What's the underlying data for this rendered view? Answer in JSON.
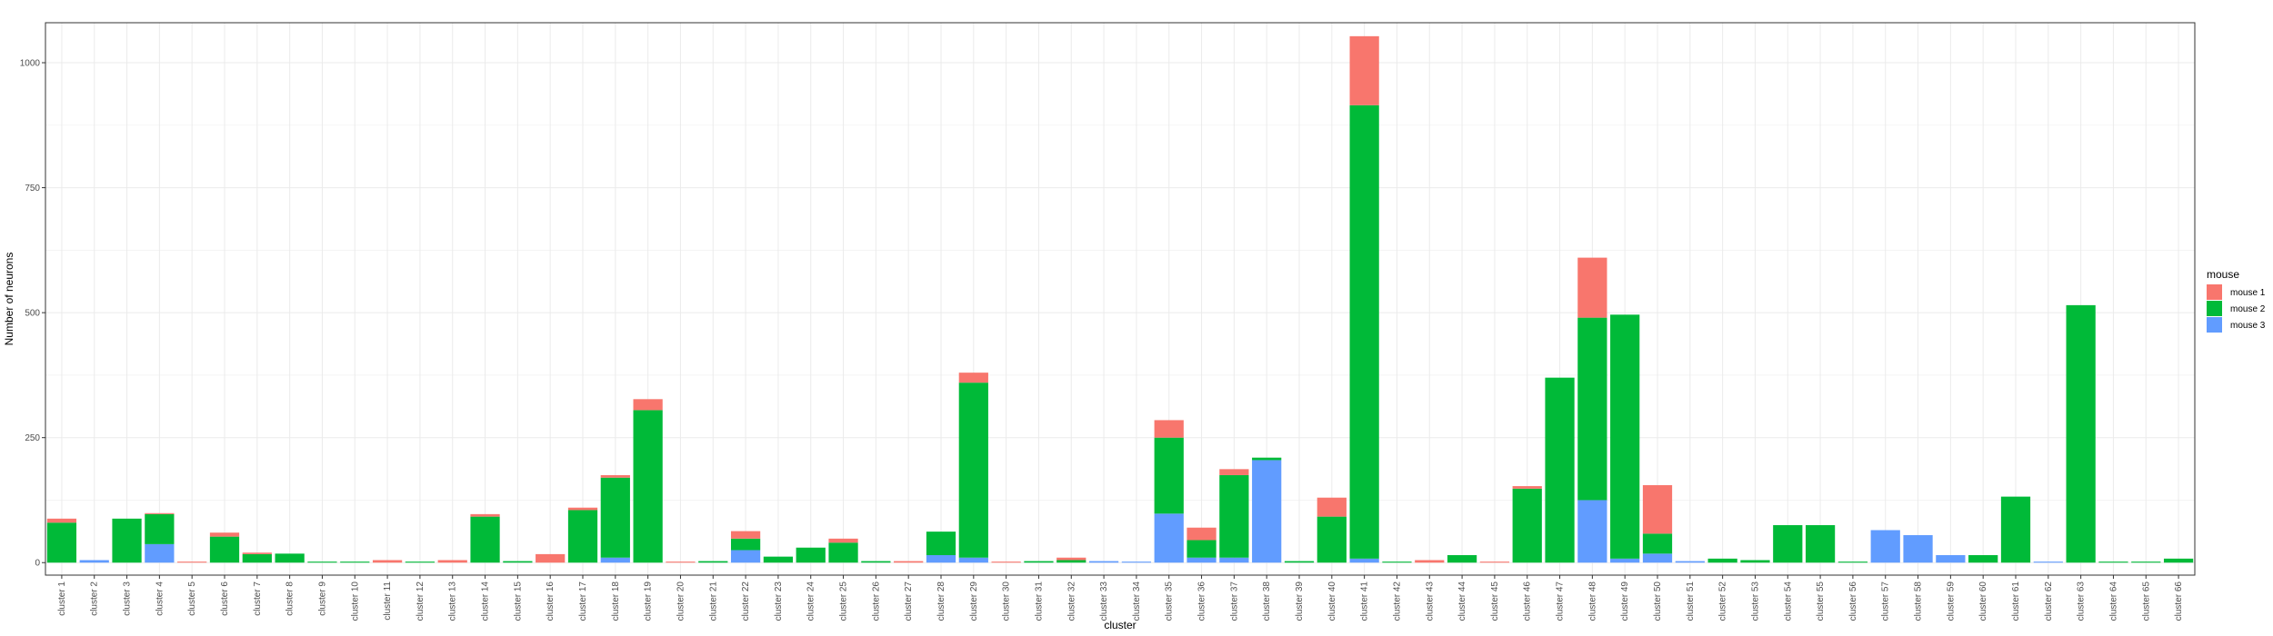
{
  "chart_data": {
    "type": "bar",
    "stacked": true,
    "xlabel": "cluster",
    "ylabel": "Number of neurons",
    "ylim": [
      -25,
      1080
    ],
    "yticks": [
      0,
      250,
      500,
      750,
      1000
    ],
    "grid": true,
    "legend": {
      "title": "mouse",
      "position": "right"
    },
    "categories": [
      "cluster 1",
      "cluster 2",
      "cluster 3",
      "cluster 4",
      "cluster 5",
      "cluster 6",
      "cluster 7",
      "cluster 8",
      "cluster 9",
      "cluster 10",
      "cluster 11",
      "cluster 12",
      "cluster 13",
      "cluster 14",
      "cluster 15",
      "cluster 16",
      "cluster 17",
      "cluster 18",
      "cluster 19",
      "cluster 20",
      "cluster 21",
      "cluster 22",
      "cluster 23",
      "cluster 24",
      "cluster 25",
      "cluster 26",
      "cluster 27",
      "cluster 28",
      "cluster 29",
      "cluster 30",
      "cluster 31",
      "cluster 32",
      "cluster 33",
      "cluster 34",
      "cluster 35",
      "cluster 36",
      "cluster 37",
      "cluster 38",
      "cluster 39",
      "cluster 40",
      "cluster 41",
      "cluster 42",
      "cluster 43",
      "cluster 44",
      "cluster 45",
      "cluster 46",
      "cluster 47",
      "cluster 48",
      "cluster 49",
      "cluster 50",
      "cluster 51",
      "cluster 52",
      "cluster 53",
      "cluster 54",
      "cluster 55",
      "cluster 56",
      "cluster 57",
      "cluster 58",
      "cluster 59",
      "cluster 60",
      "cluster 61",
      "cluster 62",
      "cluster 63",
      "cluster 64",
      "cluster 65",
      "cluster 66"
    ],
    "series": [
      {
        "name": "mouse 3",
        "color": "#619CFF",
        "values": [
          0,
          5,
          0,
          37,
          0,
          0,
          0,
          0,
          0,
          0,
          0,
          0,
          0,
          0,
          0,
          0,
          0,
          10,
          0,
          0,
          0,
          25,
          0,
          0,
          0,
          0,
          0,
          15,
          10,
          0,
          0,
          0,
          3,
          2,
          98,
          10,
          10,
          205,
          0,
          0,
          8,
          0,
          0,
          0,
          0,
          0,
          0,
          125,
          8,
          18,
          3,
          0,
          0,
          0,
          0,
          0,
          65,
          55,
          15,
          0,
          0,
          2,
          0,
          0,
          0,
          0
        ]
      },
      {
        "name": "mouse 2",
        "color": "#00BA38",
        "values": [
          80,
          0,
          88,
          60,
          0,
          52,
          17,
          18,
          2,
          2,
          0,
          2,
          0,
          92,
          3,
          0,
          105,
          160,
          305,
          0,
          3,
          23,
          12,
          30,
          40,
          3,
          0,
          47,
          350,
          0,
          3,
          5,
          0,
          0,
          152,
          35,
          165,
          5,
          3,
          92,
          907,
          2,
          0,
          15,
          0,
          148,
          370,
          365,
          488,
          40,
          0,
          8,
          5,
          75,
          75,
          2,
          0,
          0,
          0,
          15,
          132,
          0,
          515,
          2,
          2,
          8
        ]
      },
      {
        "name": "mouse 1",
        "color": "#F8766D",
        "values": [
          8,
          0,
          0,
          2,
          2,
          8,
          3,
          0,
          0,
          0,
          5,
          0,
          5,
          5,
          0,
          17,
          5,
          5,
          22,
          2,
          0,
          15,
          0,
          0,
          8,
          0,
          3,
          0,
          20,
          2,
          0,
          5,
          0,
          0,
          35,
          25,
          12,
          0,
          0,
          38,
          138,
          0,
          5,
          0,
          2,
          5,
          0,
          120,
          0,
          97,
          0,
          0,
          0,
          0,
          0,
          0,
          0,
          0,
          0,
          0,
          0,
          0,
          0,
          0,
          0,
          0
        ]
      }
    ]
  }
}
